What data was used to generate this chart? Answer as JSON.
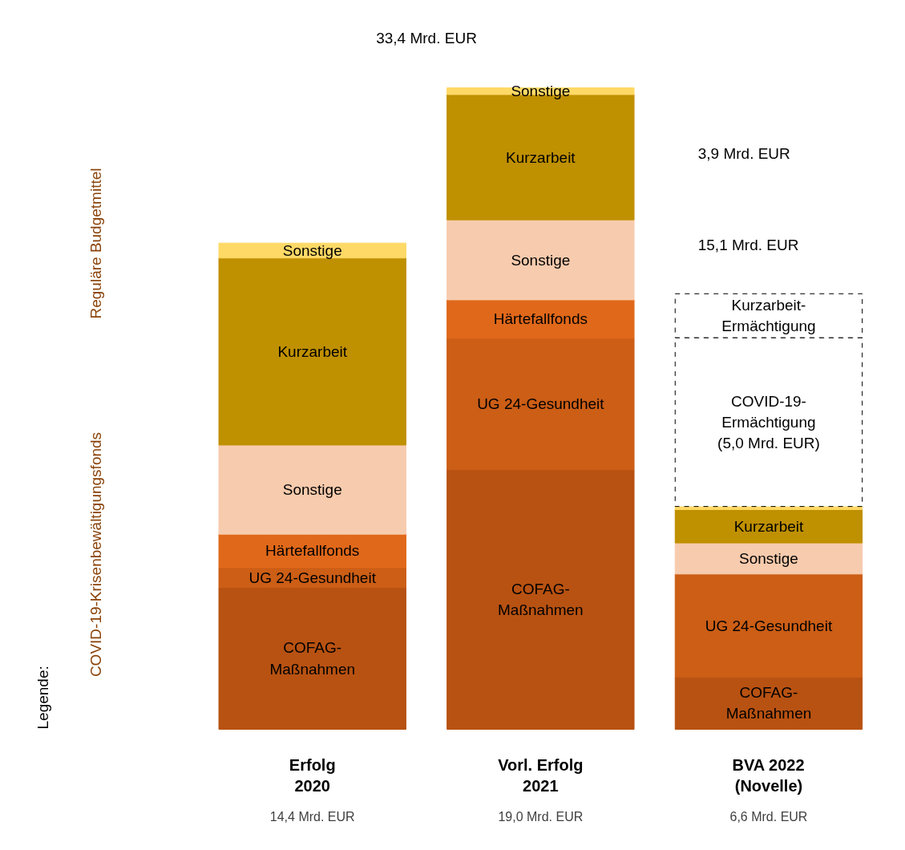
{
  "chart_data": {
    "type": "bar",
    "stacked": true,
    "legend_title": "Legende:",
    "tick_labels": false,
    "categories": [
      "Erfolg\n2020",
      "Vorl. Erfolg\n2021",
      "BVA 2022\n(Novelle)"
    ],
    "series": [
      {
        "color": "#b85212",
        "values": [
          4.2,
          7.69,
          1.55
        ],
        "value_labels": [
          "COFAG-\nMaßnahmen",
          "COFAG-\nMaßnahmen",
          "COFAG-\nMaßnahmen"
        ]
      },
      {
        "color": "#cc5e16",
        "values": [
          0.59,
          3.89,
          3.05
        ],
        "value_labels": [
          "UG 24-Gesundheit",
          "UG 24-Gesundheit",
          "UG 24-Gesundheit"
        ]
      },
      {
        "color": "#e0681a",
        "values": [
          0.99,
          1.14,
          0
        ],
        "value_labels": [
          "Härtefallfonds",
          "Härtefallfonds",
          null
        ]
      },
      {
        "color": "#f7cbad",
        "values": [
          2.64,
          2.37,
          0.92
        ],
        "value_labels": [
          "Sonstige",
          "Sonstige",
          "Sonstige"
        ]
      },
      {
        "color": "#bf9000",
        "values": [
          5.54,
          3.71,
          0.99
        ],
        "value_labels": [
          "Kurzarbeit",
          "Kurzarbeit",
          "Kurzarbeit"
        ]
      },
      {
        "color": "#ffd966",
        "values": [
          0.44,
          0.2,
          0.09
        ],
        "value_labels": [
          "Sonstige",
          "Sonstige",
          null
        ]
      },
      {
        "color": "#ffffff",
        "line_style": "dashed",
        "values": [
          0,
          0,
          5.0
        ],
        "value_labels": [
          null,
          null,
          "COVID-19-\nErmächtigung\n(5,0 Mrd. EUR)"
        ]
      },
      {
        "color": "#ffffff",
        "line_style": "dashed",
        "values": [
          0,
          0,
          1.3
        ],
        "value_labels": [
          null,
          null,
          "Kurzarbeit-\nErmächtigung"
        ]
      }
    ],
    "annotations": [
      "33,4 Mrd. EUR",
      "3,9 Mrd. EUR",
      "15,1 Mrd. EUR",
      "Reguläre Budgetmittel",
      "COVID-19-Krisenbewältigungsfonds",
      "14,4 Mrd. EUR",
      "19,0 Mrd. EUR",
      "6,6 Mrd. EUR"
    ]
  }
}
